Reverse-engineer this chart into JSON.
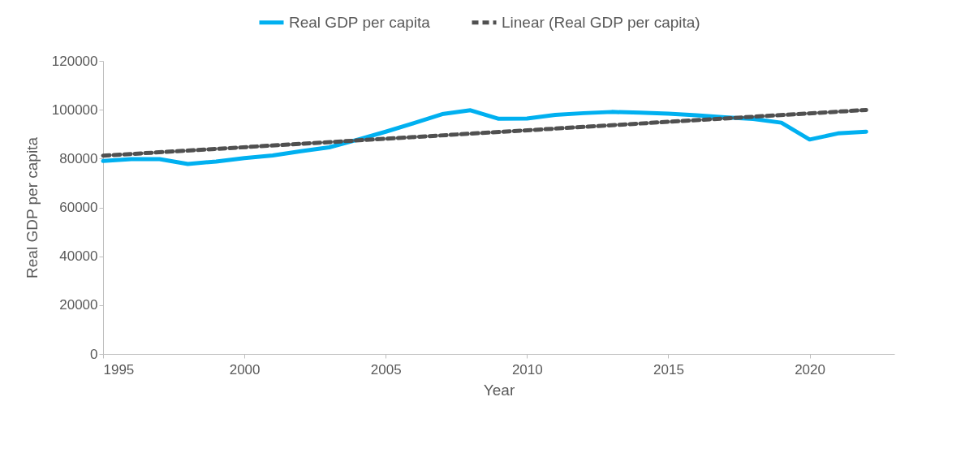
{
  "chart_data": {
    "type": "line",
    "xlabel": "Year",
    "ylabel": "Real GDP per capita",
    "x": [
      1995,
      1996,
      1997,
      1998,
      1999,
      2000,
      2001,
      2002,
      2003,
      2004,
      2005,
      2006,
      2007,
      2008,
      2009,
      2010,
      2011,
      2012,
      2013,
      2014,
      2015,
      2016,
      2017,
      2018,
      2019,
      2020,
      2021,
      2022
    ],
    "series": [
      {
        "name": "Real GDP per capita",
        "color": "#00b0f0",
        "line_style": "solid",
        "values": [
          79000,
          79800,
          79800,
          77800,
          78800,
          80200,
          81300,
          83000,
          84600,
          87700,
          91000,
          94500,
          98200,
          99800,
          96300,
          96400,
          97900,
          98600,
          99100,
          98800,
          98400,
          97700,
          96900,
          96200,
          94700,
          87800,
          90300,
          91000
        ]
      },
      {
        "name": "Linear (Real GDP per capita)",
        "type": "line",
        "color": "#505050",
        "line_style": "dashed",
        "x": [
          1995,
          2022
        ],
        "values": [
          81200,
          99900
        ]
      }
    ],
    "xlim": [
      1995,
      2023
    ],
    "xticks": [
      1995,
      2000,
      2005,
      2010,
      2015,
      2020
    ],
    "ylim": [
      0,
      120000
    ],
    "yticks": [
      0,
      20000,
      40000,
      60000,
      80000,
      100000,
      120000
    ],
    "grid": false,
    "legend": "top"
  }
}
